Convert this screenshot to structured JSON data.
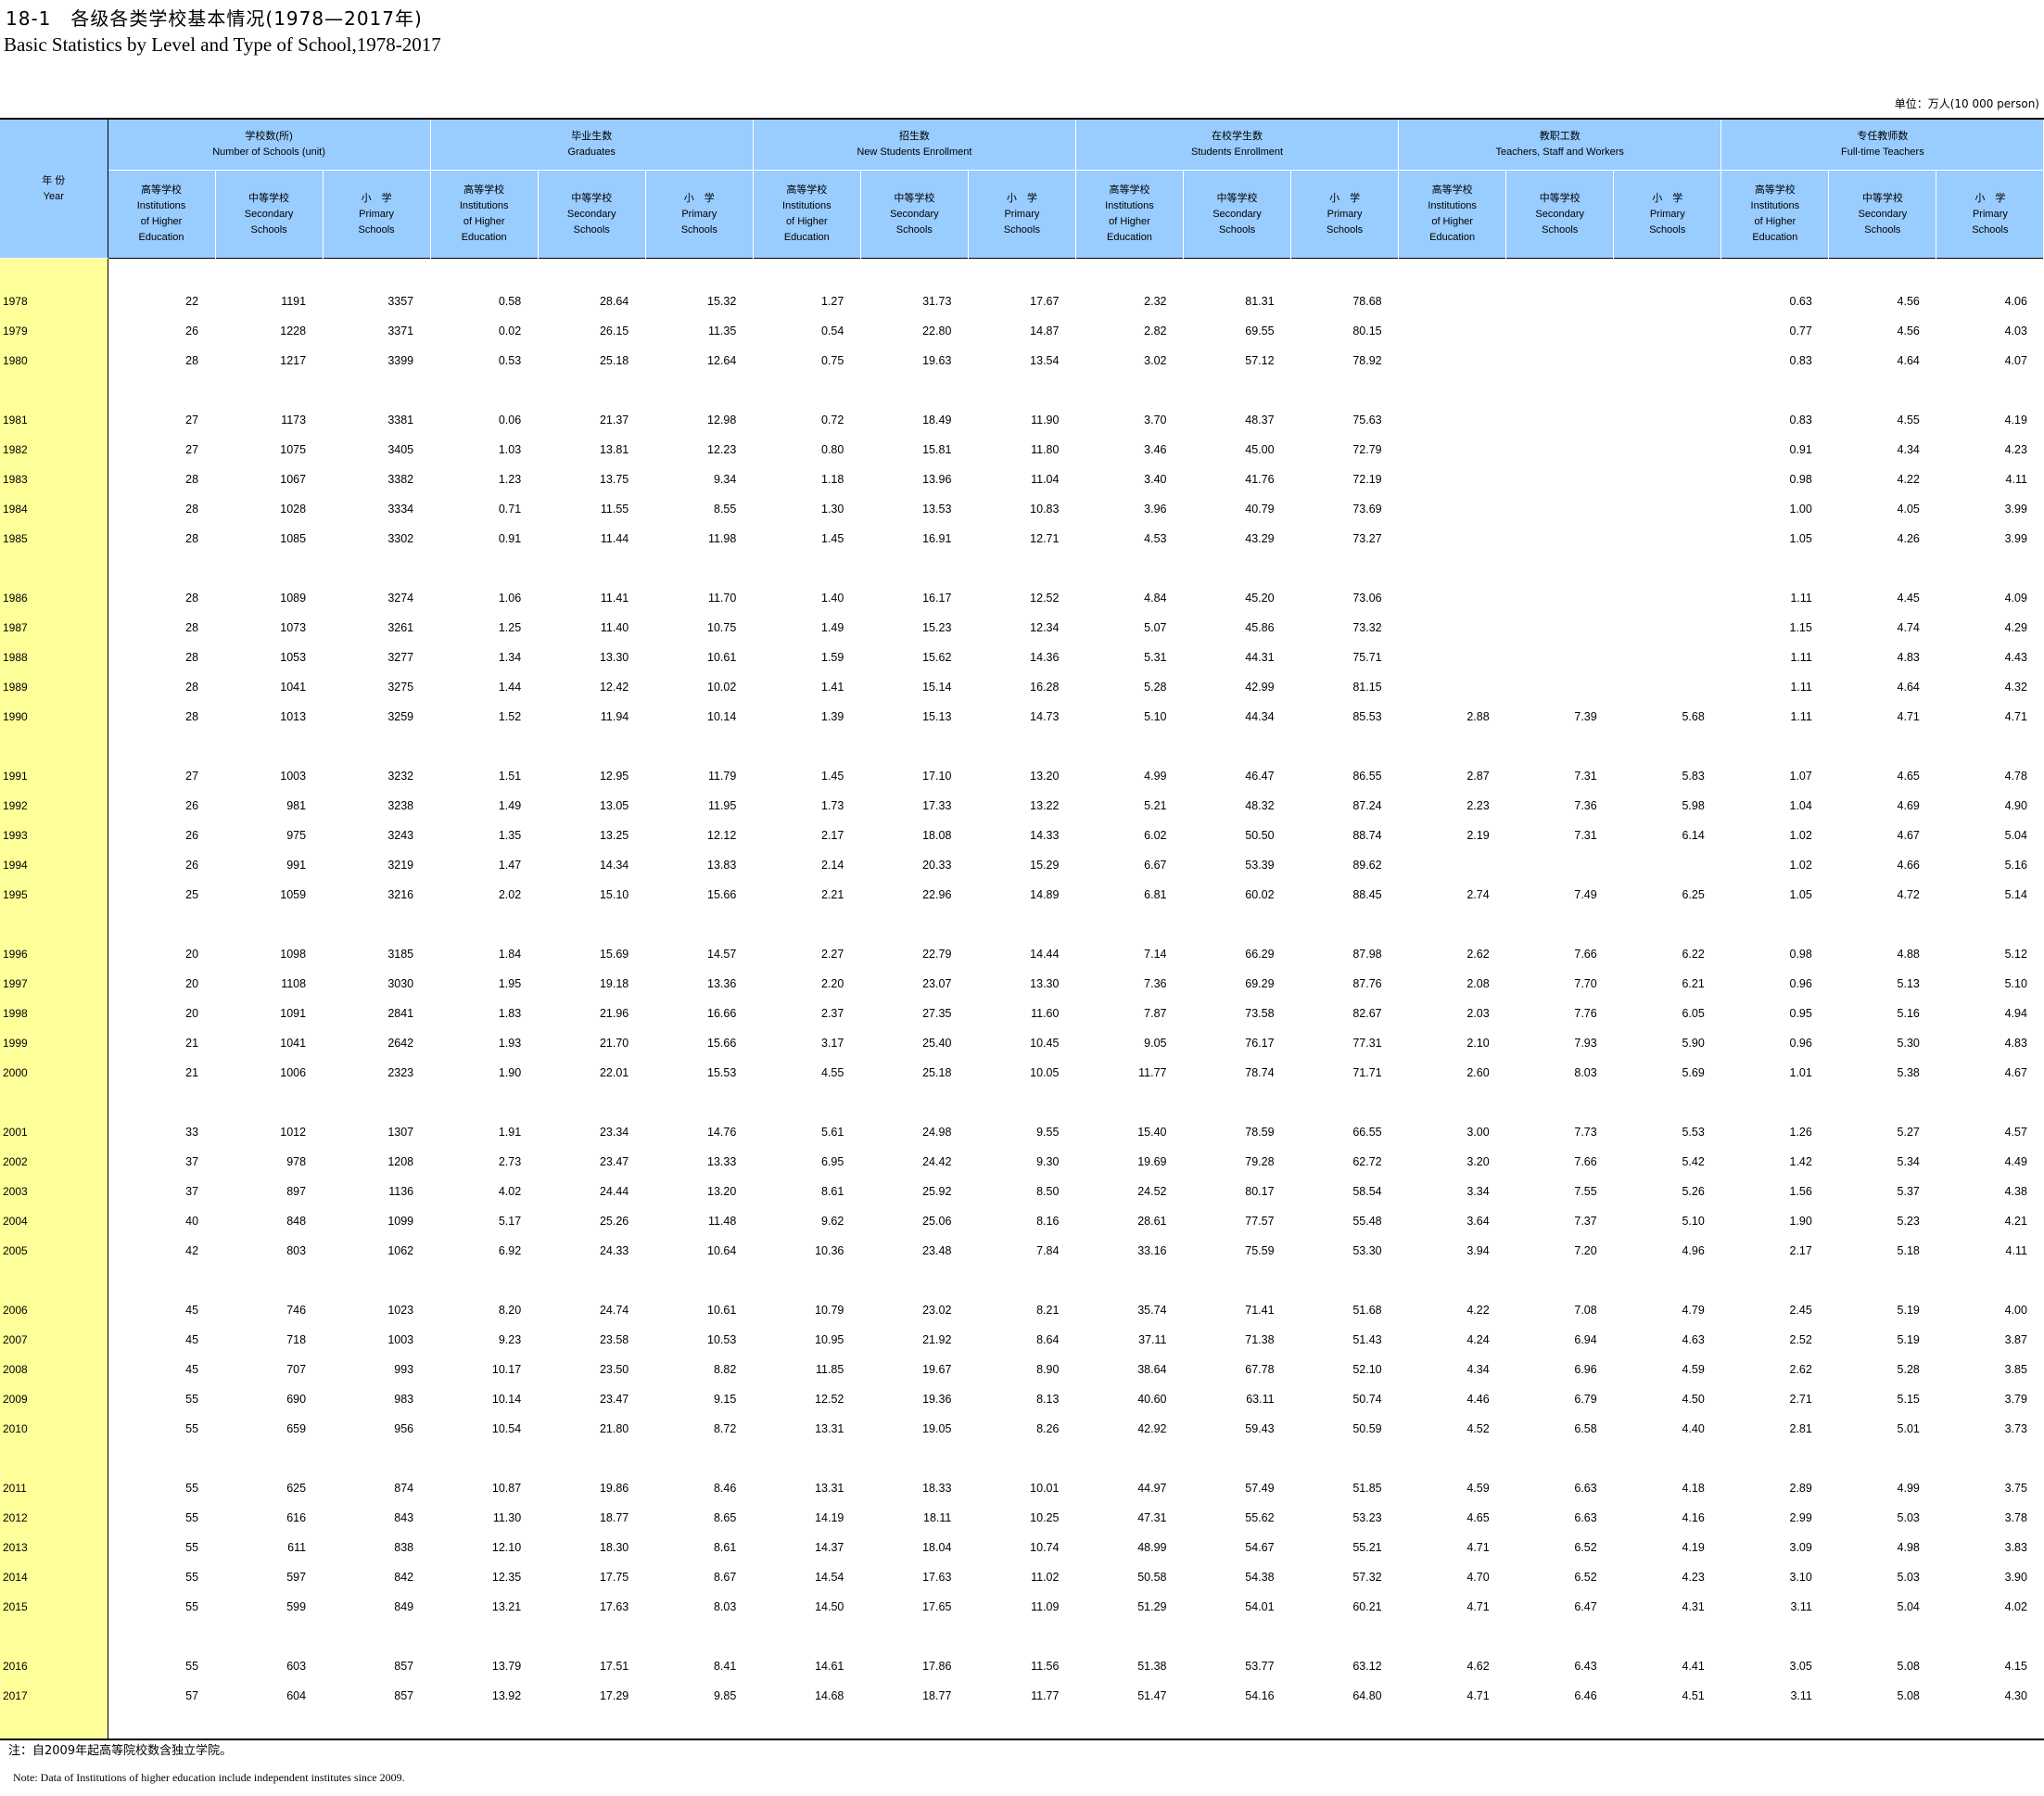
{
  "title_cn": "18-1　各级各类学校基本情况(1978—2017年)",
  "title_en": "Basic Statistics by Level and Type of School,1978-2017",
  "unit": "单位：万人(10 000 person)",
  "header": {
    "year_cn": "年 份",
    "year_en": "Year",
    "groups": [
      {
        "cn": "学校数(所)",
        "en": "Number of Schools (unit)"
      },
      {
        "cn": "毕业生数",
        "en": "Graduates"
      },
      {
        "cn": "招生数",
        "en": "New Students Enrollment"
      },
      {
        "cn": "在校学生数",
        "en": "Students Enrollment"
      },
      {
        "cn": "教职工数",
        "en": "Teachers, Staff and Workers"
      },
      {
        "cn": "专任教师数",
        "en": "Full-time Teachers"
      }
    ],
    "sub": [
      {
        "cn": "高等学校",
        "l1": "Institutions",
        "l2": "of Higher",
        "l3": "Education"
      },
      {
        "cn": "中等学校",
        "l1": "Secondary",
        "l2": "Schools",
        "l3": ""
      },
      {
        "cn": "小　学",
        "l1": "Primary",
        "l2": "Schools",
        "l3": ""
      }
    ]
  },
  "rows": [
    [
      "1978",
      "22",
      "1191",
      "3357",
      "0.58",
      "28.64",
      "15.32",
      "1.27",
      "31.73",
      "17.67",
      "2.32",
      "81.31",
      "78.68",
      "",
      "",
      "",
      "0.63",
      "4.56",
      "4.06"
    ],
    [
      "1979",
      "26",
      "1228",
      "3371",
      "0.02",
      "26.15",
      "11.35",
      "0.54",
      "22.80",
      "14.87",
      "2.82",
      "69.55",
      "80.15",
      "",
      "",
      "",
      "0.77",
      "4.56",
      "4.03"
    ],
    [
      "1980",
      "28",
      "1217",
      "3399",
      "0.53",
      "25.18",
      "12.64",
      "0.75",
      "19.63",
      "13.54",
      "3.02",
      "57.12",
      "78.92",
      "",
      "",
      "",
      "0.83",
      "4.64",
      "4.07"
    ],
    [
      "1981",
      "27",
      "1173",
      "3381",
      "0.06",
      "21.37",
      "12.98",
      "0.72",
      "18.49",
      "11.90",
      "3.70",
      "48.37",
      "75.63",
      "",
      "",
      "",
      "0.83",
      "4.55",
      "4.19"
    ],
    [
      "1982",
      "27",
      "1075",
      "3405",
      "1.03",
      "13.81",
      "12.23",
      "0.80",
      "15.81",
      "11.80",
      "3.46",
      "45.00",
      "72.79",
      "",
      "",
      "",
      "0.91",
      "4.34",
      "4.23"
    ],
    [
      "1983",
      "28",
      "1067",
      "3382",
      "1.23",
      "13.75",
      "9.34",
      "1.18",
      "13.96",
      "11.04",
      "3.40",
      "41.76",
      "72.19",
      "",
      "",
      "",
      "0.98",
      "4.22",
      "4.11"
    ],
    [
      "1984",
      "28",
      "1028",
      "3334",
      "0.71",
      "11.55",
      "8.55",
      "1.30",
      "13.53",
      "10.83",
      "3.96",
      "40.79",
      "73.69",
      "",
      "",
      "",
      "1.00",
      "4.05",
      "3.99"
    ],
    [
      "1985",
      "28",
      "1085",
      "3302",
      "0.91",
      "11.44",
      "11.98",
      "1.45",
      "16.91",
      "12.71",
      "4.53",
      "43.29",
      "73.27",
      "",
      "",
      "",
      "1.05",
      "4.26",
      "3.99"
    ],
    [
      "1986",
      "28",
      "1089",
      "3274",
      "1.06",
      "11.41",
      "11.70",
      "1.40",
      "16.17",
      "12.52",
      "4.84",
      "45.20",
      "73.06",
      "",
      "",
      "",
      "1.11",
      "4.45",
      "4.09"
    ],
    [
      "1987",
      "28",
      "1073",
      "3261",
      "1.25",
      "11.40",
      "10.75",
      "1.49",
      "15.23",
      "12.34",
      "5.07",
      "45.86",
      "73.32",
      "",
      "",
      "",
      "1.15",
      "4.74",
      "4.29"
    ],
    [
      "1988",
      "28",
      "1053",
      "3277",
      "1.34",
      "13.30",
      "10.61",
      "1.59",
      "15.62",
      "14.36",
      "5.31",
      "44.31",
      "75.71",
      "",
      "",
      "",
      "1.11",
      "4.83",
      "4.43"
    ],
    [
      "1989",
      "28",
      "1041",
      "3275",
      "1.44",
      "12.42",
      "10.02",
      "1.41",
      "15.14",
      "16.28",
      "5.28",
      "42.99",
      "81.15",
      "",
      "",
      "",
      "1.11",
      "4.64",
      "4.32"
    ],
    [
      "1990",
      "28",
      "1013",
      "3259",
      "1.52",
      "11.94",
      "10.14",
      "1.39",
      "15.13",
      "14.73",
      "5.10",
      "44.34",
      "85.53",
      "2.88",
      "7.39",
      "5.68",
      "1.11",
      "4.71",
      "4.71"
    ],
    [
      "1991",
      "27",
      "1003",
      "3232",
      "1.51",
      "12.95",
      "11.79",
      "1.45",
      "17.10",
      "13.20",
      "4.99",
      "46.47",
      "86.55",
      "2.87",
      "7.31",
      "5.83",
      "1.07",
      "4.65",
      "4.78"
    ],
    [
      "1992",
      "26",
      "981",
      "3238",
      "1.49",
      "13.05",
      "11.95",
      "1.73",
      "17.33",
      "13.22",
      "5.21",
      "48.32",
      "87.24",
      "2.23",
      "7.36",
      "5.98",
      "1.04",
      "4.69",
      "4.90"
    ],
    [
      "1993",
      "26",
      "975",
      "3243",
      "1.35",
      "13.25",
      "12.12",
      "2.17",
      "18.08",
      "14.33",
      "6.02",
      "50.50",
      "88.74",
      "2.19",
      "7.31",
      "6.14",
      "1.02",
      "4.67",
      "5.04"
    ],
    [
      "1994",
      "26",
      "991",
      "3219",
      "1.47",
      "14.34",
      "13.83",
      "2.14",
      "20.33",
      "15.29",
      "6.67",
      "53.39",
      "89.62",
      "",
      "",
      "",
      "1.02",
      "4.66",
      "5.16"
    ],
    [
      "1995",
      "25",
      "1059",
      "3216",
      "2.02",
      "15.10",
      "15.66",
      "2.21",
      "22.96",
      "14.89",
      "6.81",
      "60.02",
      "88.45",
      "2.74",
      "7.49",
      "6.25",
      "1.05",
      "4.72",
      "5.14"
    ],
    [
      "1996",
      "20",
      "1098",
      "3185",
      "1.84",
      "15.69",
      "14.57",
      "2.27",
      "22.79",
      "14.44",
      "7.14",
      "66.29",
      "87.98",
      "2.62",
      "7.66",
      "6.22",
      "0.98",
      "4.88",
      "5.12"
    ],
    [
      "1997",
      "20",
      "1108",
      "3030",
      "1.95",
      "19.18",
      "13.36",
      "2.20",
      "23.07",
      "13.30",
      "7.36",
      "69.29",
      "87.76",
      "2.08",
      "7.70",
      "6.21",
      "0.96",
      "5.13",
      "5.10"
    ],
    [
      "1998",
      "20",
      "1091",
      "2841",
      "1.83",
      "21.96",
      "16.66",
      "2.37",
      "27.35",
      "11.60",
      "7.87",
      "73.58",
      "82.67",
      "2.03",
      "7.76",
      "6.05",
      "0.95",
      "5.16",
      "4.94"
    ],
    [
      "1999",
      "21",
      "1041",
      "2642",
      "1.93",
      "21.70",
      "15.66",
      "3.17",
      "25.40",
      "10.45",
      "9.05",
      "76.17",
      "77.31",
      "2.10",
      "7.93",
      "5.90",
      "0.96",
      "5.30",
      "4.83"
    ],
    [
      "2000",
      "21",
      "1006",
      "2323",
      "1.90",
      "22.01",
      "15.53",
      "4.55",
      "25.18",
      "10.05",
      "11.77",
      "78.74",
      "71.71",
      "2.60",
      "8.03",
      "5.69",
      "1.01",
      "5.38",
      "4.67"
    ],
    [
      "2001",
      "33",
      "1012",
      "1307",
      "1.91",
      "23.34",
      "14.76",
      "5.61",
      "24.98",
      "9.55",
      "15.40",
      "78.59",
      "66.55",
      "3.00",
      "7.73",
      "5.53",
      "1.26",
      "5.27",
      "4.57"
    ],
    [
      "2002",
      "37",
      "978",
      "1208",
      "2.73",
      "23.47",
      "13.33",
      "6.95",
      "24.42",
      "9.30",
      "19.69",
      "79.28",
      "62.72",
      "3.20",
      "7.66",
      "5.42",
      "1.42",
      "5.34",
      "4.49"
    ],
    [
      "2003",
      "37",
      "897",
      "1136",
      "4.02",
      "24.44",
      "13.20",
      "8.61",
      "25.92",
      "8.50",
      "24.52",
      "80.17",
      "58.54",
      "3.34",
      "7.55",
      "5.26",
      "1.56",
      "5.37",
      "4.38"
    ],
    [
      "2004",
      "40",
      "848",
      "1099",
      "5.17",
      "25.26",
      "11.48",
      "9.62",
      "25.06",
      "8.16",
      "28.61",
      "77.57",
      "55.48",
      "3.64",
      "7.37",
      "5.10",
      "1.90",
      "5.23",
      "4.21"
    ],
    [
      "2005",
      "42",
      "803",
      "1062",
      "6.92",
      "24.33",
      "10.64",
      "10.36",
      "23.48",
      "7.84",
      "33.16",
      "75.59",
      "53.30",
      "3.94",
      "7.20",
      "4.96",
      "2.17",
      "5.18",
      "4.11"
    ],
    [
      "2006",
      "45",
      "746",
      "1023",
      "8.20",
      "24.74",
      "10.61",
      "10.79",
      "23.02",
      "8.21",
      "35.74",
      "71.41",
      "51.68",
      "4.22",
      "7.08",
      "4.79",
      "2.45",
      "5.19",
      "4.00"
    ],
    [
      "2007",
      "45",
      "718",
      "1003",
      "9.23",
      "23.58",
      "10.53",
      "10.95",
      "21.92",
      "8.64",
      "37.11",
      "71.38",
      "51.43",
      "4.24",
      "6.94",
      "4.63",
      "2.52",
      "5.19",
      "3.87"
    ],
    [
      "2008",
      "45",
      "707",
      "993",
      "10.17",
      "23.50",
      "8.82",
      "11.85",
      "19.67",
      "8.90",
      "38.64",
      "67.78",
      "52.10",
      "4.34",
      "6.96",
      "4.59",
      "2.62",
      "5.28",
      "3.85"
    ],
    [
      "2009",
      "55",
      "690",
      "983",
      "10.14",
      "23.47",
      "9.15",
      "12.52",
      "19.36",
      "8.13",
      "40.60",
      "63.11",
      "50.74",
      "4.46",
      "6.79",
      "4.50",
      "2.71",
      "5.15",
      "3.79"
    ],
    [
      "2010",
      "55",
      "659",
      "956",
      "10.54",
      "21.80",
      "8.72",
      "13.31",
      "19.05",
      "8.26",
      "42.92",
      "59.43",
      "50.59",
      "4.52",
      "6.58",
      "4.40",
      "2.81",
      "5.01",
      "3.73"
    ],
    [
      "2011",
      "55",
      "625",
      "874",
      "10.87",
      "19.86",
      "8.46",
      "13.31",
      "18.33",
      "10.01",
      "44.97",
      "57.49",
      "51.85",
      "4.59",
      "6.63",
      "4.18",
      "2.89",
      "4.99",
      "3.75"
    ],
    [
      "2012",
      "55",
      "616",
      "843",
      "11.30",
      "18.77",
      "8.65",
      "14.19",
      "18.11",
      "10.25",
      "47.31",
      "55.62",
      "53.23",
      "4.65",
      "6.63",
      "4.16",
      "2.99",
      "5.03",
      "3.78"
    ],
    [
      "2013",
      "55",
      "611",
      "838",
      "12.10",
      "18.30",
      "8.61",
      "14.37",
      "18.04",
      "10.74",
      "48.99",
      "54.67",
      "55.21",
      "4.71",
      "6.52",
      "4.19",
      "3.09",
      "4.98",
      "3.83"
    ],
    [
      "2014",
      "55",
      "597",
      "842",
      "12.35",
      "17.75",
      "8.67",
      "14.54",
      "17.63",
      "11.02",
      "50.58",
      "54.38",
      "57.32",
      "4.70",
      "6.52",
      "4.23",
      "3.10",
      "5.03",
      "3.90"
    ],
    [
      "2015",
      "55",
      "599",
      "849",
      "13.21",
      "17.63",
      "8.03",
      "14.50",
      "17.65",
      "11.09",
      "51.29",
      "54.01",
      "60.21",
      "4.71",
      "6.47",
      "4.31",
      "3.11",
      "5.04",
      "4.02"
    ],
    [
      "2016",
      "55",
      "603",
      "857",
      "13.79",
      "17.51",
      "8.41",
      "14.61",
      "17.86",
      "11.56",
      "51.38",
      "53.77",
      "63.12",
      "4.62",
      "6.43",
      "4.41",
      "3.05",
      "5.08",
      "4.15"
    ],
    [
      "2017",
      "57",
      "604",
      "857",
      "13.92",
      "17.29",
      "9.85",
      "14.68",
      "18.77",
      "11.77",
      "51.47",
      "54.16",
      "64.80",
      "4.71",
      "6.46",
      "4.51",
      "3.11",
      "5.08",
      "4.30"
    ]
  ],
  "notes": {
    "cn": "注：自2009年起高等院校数含独立学院。",
    "en": "Note: Data of Institutions of higher education include independent institutes since 2009."
  }
}
